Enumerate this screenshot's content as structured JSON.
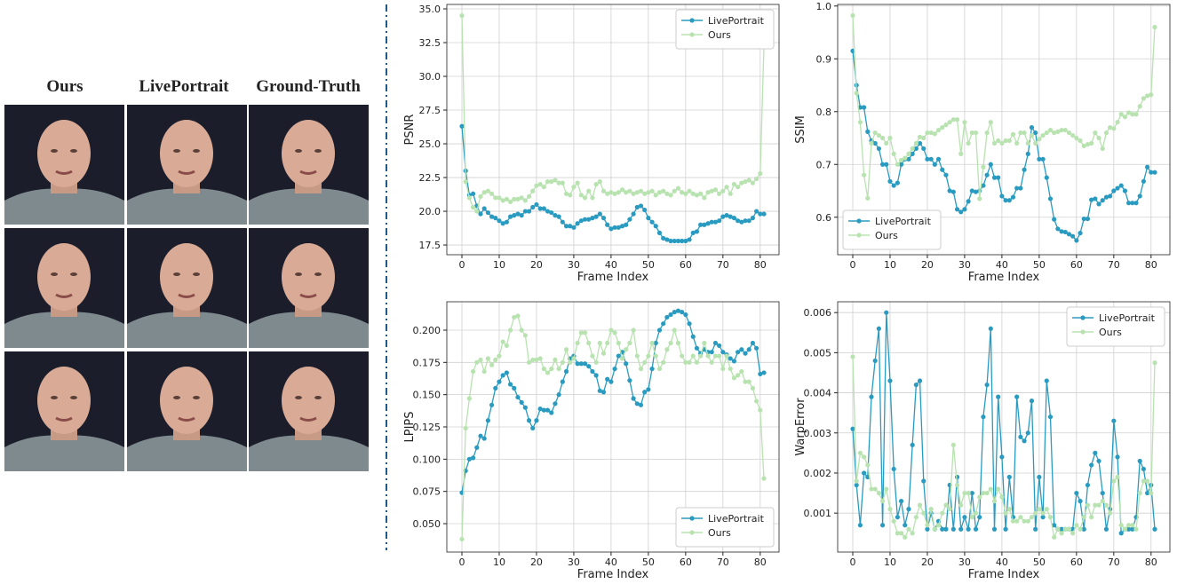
{
  "figure": {
    "column_headers": [
      "Ours",
      "LivePortrait",
      "Ground-Truth"
    ]
  },
  "chart_data": [
    {
      "type": "line",
      "xlabel": "Frame Index",
      "ylabel": "PSNR",
      "legend": "upper right",
      "grid": true,
      "x": [
        0,
        1,
        2,
        3,
        4,
        5,
        6,
        7,
        8,
        9,
        10,
        11,
        12,
        13,
        14,
        15,
        16,
        17,
        18,
        19,
        20,
        21,
        22,
        23,
        24,
        25,
        26,
        27,
        28,
        29,
        30,
        31,
        32,
        33,
        34,
        35,
        36,
        37,
        38,
        39,
        40,
        41,
        42,
        43,
        44,
        45,
        46,
        47,
        48,
        49,
        50,
        51,
        52,
        53,
        54,
        55,
        56,
        57,
        58,
        59,
        60,
        61,
        62,
        63,
        64,
        65,
        66,
        67,
        68,
        69,
        70,
        71,
        72,
        73,
        74,
        75,
        76,
        77,
        78,
        79,
        80,
        81
      ],
      "xlim": [
        -4.05,
        85.05
      ],
      "xticks": [
        0,
        10,
        20,
        30,
        40,
        50,
        60,
        70,
        80
      ],
      "ylim": [
        16.78,
        35.33
      ],
      "yticks": [
        17.5,
        {
          "value": 20,
          "label": "20.0"
        },
        22.5,
        {
          "value": 25,
          "label": "25.0"
        },
        27.5,
        {
          "value": 30,
          "label": "30.0"
        },
        32.5,
        {
          "value": 35,
          "label": "35.0"
        }
      ],
      "series": [
        {
          "name": "LivePortrait",
          "color": "#2a9bc0",
          "values": [
            26.3,
            23.0,
            21.2,
            21.3,
            20.4,
            19.8,
            20.2,
            19.9,
            19.6,
            19.5,
            19.3,
            19.1,
            19.2,
            19.6,
            19.7,
            19.8,
            19.7,
            20.0,
            20.0,
            20.3,
            20.5,
            20.2,
            20.2,
            20.0,
            19.9,
            19.7,
            19.6,
            19.2,
            18.9,
            18.9,
            18.8,
            19.1,
            19.3,
            19.4,
            19.4,
            19.5,
            19.6,
            19.8,
            19.5,
            19.0,
            18.7,
            18.8,
            18.8,
            18.9,
            19.0,
            19.4,
            19.8,
            20.3,
            20.4,
            20.1,
            19.5,
            19.2,
            18.9,
            18.4,
            18.0,
            17.9,
            17.8,
            17.8,
            17.8,
            17.8,
            17.8,
            17.9,
            18.4,
            18.5,
            19.0,
            19.0,
            19.1,
            19.2,
            19.2,
            19.3,
            19.6,
            19.7,
            19.6,
            19.5,
            19.3,
            19.2,
            19.3,
            19.3,
            19.5,
            20.0,
            19.8,
            19.8
          ]
        },
        {
          "name": "Ours",
          "color": "#b8e3b0",
          "values": [
            34.5,
            22.2,
            21.0,
            20.3,
            20.0,
            21.1,
            21.4,
            21.5,
            21.3,
            21.0,
            21.0,
            20.8,
            20.9,
            20.7,
            20.9,
            20.9,
            21.0,
            20.8,
            21.1,
            21.5,
            21.9,
            22.0,
            21.8,
            22.2,
            22.2,
            22.3,
            22.1,
            22.1,
            21.3,
            21.2,
            21.8,
            22.1,
            21.2,
            21.0,
            21.5,
            21.0,
            22.0,
            22.2,
            21.5,
            21.3,
            21.4,
            21.3,
            21.4,
            21.6,
            21.4,
            21.5,
            21.3,
            21.4,
            21.5,
            21.3,
            21.4,
            21.5,
            21.2,
            21.4,
            21.5,
            21.3,
            21.2,
            21.5,
            21.7,
            21.4,
            21.3,
            21.5,
            21.3,
            21.2,
            21.3,
            21.0,
            21.4,
            21.5,
            21.6,
            21.3,
            21.5,
            21.8,
            21.3,
            22.0,
            21.8,
            22.1,
            22.2,
            22.3,
            22.1,
            22.4,
            22.8,
            32.2
          ]
        }
      ]
    },
    {
      "type": "line",
      "xlabel": "Frame Index",
      "ylabel": "SSIM",
      "legend": "lower left",
      "grid": true,
      "x": [
        0,
        1,
        2,
        3,
        4,
        5,
        6,
        7,
        8,
        9,
        10,
        11,
        12,
        13,
        14,
        15,
        16,
        17,
        18,
        19,
        20,
        21,
        22,
        23,
        24,
        25,
        26,
        27,
        28,
        29,
        30,
        31,
        32,
        33,
        34,
        35,
        36,
        37,
        38,
        39,
        40,
        41,
        42,
        43,
        44,
        45,
        46,
        47,
        48,
        49,
        50,
        51,
        52,
        53,
        54,
        55,
        56,
        57,
        58,
        59,
        60,
        61,
        62,
        63,
        64,
        65,
        66,
        67,
        68,
        69,
        70,
        71,
        72,
        73,
        74,
        75,
        76,
        77,
        78,
        79,
        80,
        81
      ],
      "xlim": [
        -4.05,
        85.05
      ],
      "xticks": [
        0,
        10,
        20,
        30,
        40,
        50,
        60,
        70,
        80
      ],
      "ylim": [
        0.529,
        1.003
      ],
      "yticks": [
        0.6,
        0.7,
        0.8,
        0.9,
        {
          "value": 1,
          "label": "1.0"
        }
      ],
      "series": [
        {
          "name": "LivePortrait",
          "color": "#2a9bc0",
          "values": [
            0.915,
            0.85,
            0.808,
            0.808,
            0.762,
            0.745,
            0.74,
            0.73,
            0.7,
            0.7,
            0.668,
            0.66,
            0.665,
            0.7,
            0.71,
            0.71,
            0.72,
            0.73,
            0.74,
            0.73,
            0.71,
            0.71,
            0.7,
            0.71,
            0.69,
            0.68,
            0.65,
            0.648,
            0.615,
            0.61,
            0.615,
            0.63,
            0.65,
            0.648,
            0.65,
            0.66,
            0.68,
            0.7,
            0.675,
            0.675,
            0.64,
            0.632,
            0.632,
            0.638,
            0.655,
            0.655,
            0.69,
            0.72,
            0.77,
            0.76,
            0.71,
            0.71,
            0.675,
            0.635,
            0.596,
            0.578,
            0.573,
            0.572,
            0.568,
            0.564,
            0.556,
            0.57,
            0.597,
            0.597,
            0.633,
            0.635,
            0.625,
            0.632,
            0.638,
            0.64,
            0.65,
            0.655,
            0.66,
            0.65,
            0.627,
            0.627,
            0.627,
            0.64,
            0.668,
            0.695,
            0.685,
            0.685
          ]
        },
        {
          "name": "Ours",
          "color": "#b8e3b0",
          "values": [
            0.982,
            0.835,
            0.78,
            0.68,
            0.636,
            0.74,
            0.76,
            0.755,
            0.75,
            0.74,
            0.75,
            0.72,
            0.7,
            0.708,
            0.712,
            0.72,
            0.73,
            0.74,
            0.752,
            0.75,
            0.76,
            0.76,
            0.758,
            0.765,
            0.77,
            0.775,
            0.78,
            0.785,
            0.785,
            0.72,
            0.78,
            0.74,
            0.76,
            0.76,
            0.635,
            0.695,
            0.76,
            0.78,
            0.74,
            0.745,
            0.74,
            0.745,
            0.745,
            0.757,
            0.74,
            0.76,
            0.76,
            0.74,
            0.755,
            0.74,
            0.748,
            0.755,
            0.76,
            0.765,
            0.76,
            0.762,
            0.765,
            0.765,
            0.76,
            0.755,
            0.75,
            0.745,
            0.735,
            0.738,
            0.74,
            0.76,
            0.75,
            0.73,
            0.76,
            0.77,
            0.768,
            0.78,
            0.795,
            0.79,
            0.798,
            0.795,
            0.795,
            0.81,
            0.825,
            0.83,
            0.832,
            0.96
          ]
        }
      ]
    },
    {
      "type": "line",
      "xlabel": "Frame Index",
      "ylabel": "LPIPS",
      "legend": "lower right",
      "grid": true,
      "x": [
        0,
        1,
        2,
        3,
        4,
        5,
        6,
        7,
        8,
        9,
        10,
        11,
        12,
        13,
        14,
        15,
        16,
        17,
        18,
        19,
        20,
        21,
        22,
        23,
        24,
        25,
        26,
        27,
        28,
        29,
        30,
        31,
        32,
        33,
        34,
        35,
        36,
        37,
        38,
        39,
        40,
        41,
        42,
        43,
        44,
        45,
        46,
        47,
        48,
        49,
        50,
        51,
        52,
        53,
        54,
        55,
        56,
        57,
        58,
        59,
        60,
        61,
        62,
        63,
        64,
        65,
        66,
        67,
        68,
        69,
        70,
        71,
        72,
        73,
        74,
        75,
        76,
        77,
        78,
        79,
        80,
        81
      ],
      "xlim": [
        -4.05,
        85.05
      ],
      "xticks": [
        0,
        10,
        20,
        30,
        40,
        50,
        60,
        70,
        80
      ],
      "ylim": [
        0.028,
        0.222
      ],
      "yticks": [
        {
          "value": 0.05,
          "label": "0.050"
        },
        0.075,
        {
          "value": 0.1,
          "label": "0.100"
        },
        0.125,
        {
          "value": 0.15,
          "label": "0.150"
        },
        0.175,
        {
          "value": 0.2,
          "label": "0.200"
        }
      ],
      "series": [
        {
          "name": "LivePortrait",
          "color": "#2a9bc0",
          "values": [
            0.074,
            0.091,
            0.1,
            0.101,
            0.109,
            0.118,
            0.116,
            0.13,
            0.142,
            0.155,
            0.16,
            0.165,
            0.167,
            0.158,
            0.155,
            0.148,
            0.144,
            0.14,
            0.13,
            0.124,
            0.13,
            0.139,
            0.138,
            0.138,
            0.136,
            0.143,
            0.15,
            0.16,
            0.168,
            0.178,
            0.18,
            0.174,
            0.174,
            0.174,
            0.172,
            0.168,
            0.165,
            0.153,
            0.152,
            0.162,
            0.16,
            0.17,
            0.18,
            0.183,
            0.174,
            0.161,
            0.147,
            0.143,
            0.142,
            0.152,
            0.154,
            0.17,
            0.19,
            0.2,
            0.205,
            0.21,
            0.212,
            0.214,
            0.215,
            0.214,
            0.212,
            0.205,
            0.195,
            0.186,
            0.182,
            0.185,
            0.183,
            0.183,
            0.19,
            0.188,
            0.183,
            0.181,
            0.178,
            0.176,
            0.183,
            0.185,
            0.182,
            0.185,
            0.19,
            0.186,
            0.166,
            0.167
          ]
        },
        {
          "name": "Ours",
          "color": "#b8e3b0",
          "values": [
            0.038,
            0.124,
            0.147,
            0.168,
            0.175,
            0.177,
            0.168,
            0.178,
            0.173,
            0.177,
            0.18,
            0.191,
            0.188,
            0.2,
            0.21,
            0.211,
            0.2,
            0.196,
            0.175,
            0.177,
            0.177,
            0.178,
            0.17,
            0.167,
            0.17,
            0.177,
            0.17,
            0.175,
            0.185,
            0.175,
            0.178,
            0.19,
            0.198,
            0.198,
            0.19,
            0.18,
            0.175,
            0.19,
            0.182,
            0.19,
            0.2,
            0.198,
            0.19,
            0.178,
            0.185,
            0.19,
            0.2,
            0.18,
            0.17,
            0.175,
            0.18,
            0.19,
            0.18,
            0.17,
            0.175,
            0.185,
            0.19,
            0.2,
            0.19,
            0.18,
            0.175,
            0.175,
            0.18,
            0.175,
            0.18,
            0.19,
            0.18,
            0.175,
            0.18,
            0.18,
            0.17,
            0.18,
            0.17,
            0.163,
            0.165,
            0.168,
            0.16,
            0.16,
            0.155,
            0.145,
            0.138,
            0.085
          ]
        }
      ]
    },
    {
      "type": "line",
      "xlabel": "Frame Index",
      "ylabel": "WarpError",
      "legend": "upper right",
      "grid": true,
      "x": [
        0,
        1,
        2,
        3,
        4,
        5,
        6,
        7,
        8,
        9,
        10,
        11,
        12,
        13,
        14,
        15,
        16,
        17,
        18,
        19,
        20,
        21,
        22,
        23,
        24,
        25,
        26,
        27,
        28,
        29,
        30,
        31,
        32,
        33,
        34,
        35,
        36,
        37,
        38,
        39,
        40,
        41,
        42,
        43,
        44,
        45,
        46,
        47,
        48,
        49,
        50,
        51,
        52,
        53,
        54,
        55,
        56,
        57,
        58,
        59,
        60,
        61,
        62,
        63,
        64,
        65,
        66,
        67,
        68,
        69,
        70,
        71,
        72,
        73,
        74,
        75,
        76,
        77,
        78,
        79,
        80,
        81
      ],
      "xlim": [
        -4.05,
        85.05
      ],
      "xticks": [
        0,
        10,
        20,
        30,
        40,
        50,
        60,
        70,
        80
      ],
      "ylim": [
        3e-05,
        0.00627
      ],
      "yticks": [
        0.001,
        0.002,
        0.003,
        0.004,
        0.005,
        0.006
      ],
      "series": [
        {
          "name": "LivePortrait",
          "color": "#2a9bc0",
          "values": [
            0.0031,
            0.0017,
            0.0007,
            0.002,
            0.0019,
            0.0039,
            0.0048,
            0.0056,
            0.0007,
            0.006,
            0.0043,
            0.0021,
            0.0009,
            0.0013,
            0.0007,
            0.0011,
            0.0027,
            0.0042,
            0.0043,
            0.0018,
            0.0006,
            0.001,
            0.0006,
            0.0008,
            0.0006,
            0.0006,
            0.0017,
            0.0006,
            0.0019,
            0.0006,
            0.0009,
            0.0006,
            0.0015,
            0.0006,
            0.0009,
            0.0034,
            0.0042,
            0.0056,
            0.0006,
            0.0039,
            0.0024,
            0.0006,
            0.0019,
            0.0009,
            0.0039,
            0.0029,
            0.0028,
            0.003,
            0.0038,
            0.0006,
            0.0019,
            0.0009,
            0.0043,
            0.0034,
            0.0007,
            0.0006,
            0.0006,
            0.0006,
            0.0006,
            0.0006,
            0.0015,
            0.0013,
            0.0006,
            0.0017,
            0.0022,
            0.0025,
            0.0023,
            0.0015,
            0.0006,
            0.0011,
            0.0033,
            0.0024,
            0.0005,
            0.0006,
            0.0006,
            0.0006,
            0.0009,
            0.0023,
            0.0021,
            0.0015,
            0.0017,
            0.0006
          ]
        },
        {
          "name": "Ours",
          "color": "#b8e3b0",
          "values": [
            0.0049,
            0.0018,
            0.0025,
            0.0024,
            0.0022,
            0.0016,
            0.0016,
            0.0015,
            0.0013,
            0.0016,
            0.0011,
            0.0008,
            0.0005,
            0.0005,
            0.0004,
            0.0006,
            0.0005,
            0.0009,
            0.0012,
            0.001,
            0.0007,
            0.0011,
            0.0006,
            0.0007,
            0.001,
            0.0012,
            0.0011,
            0.0027,
            0.0017,
            0.0012,
            0.0015,
            0.0015,
            0.0009,
            0.001,
            0.0014,
            0.0015,
            0.0015,
            0.0016,
            0.0013,
            0.0016,
            0.0014,
            0.001,
            0.0011,
            0.0008,
            0.0008,
            0.0009,
            0.0008,
            0.0008,
            0.0009,
            0.001,
            0.0011,
            0.001,
            0.0011,
            0.0009,
            0.0004,
            0.0006,
            0.0005,
            0.0006,
            0.0006,
            0.0005,
            0.0007,
            0.0006,
            0.0009,
            0.0012,
            0.0009,
            0.0012,
            0.0012,
            0.0013,
            0.0012,
            0.001,
            0.0018,
            0.0019,
            0.0007,
            0.0006,
            0.0007,
            0.0007,
            0.0006,
            0.0015,
            0.0018,
            0.0018,
            0.0015,
            0.00475
          ]
        }
      ]
    }
  ]
}
